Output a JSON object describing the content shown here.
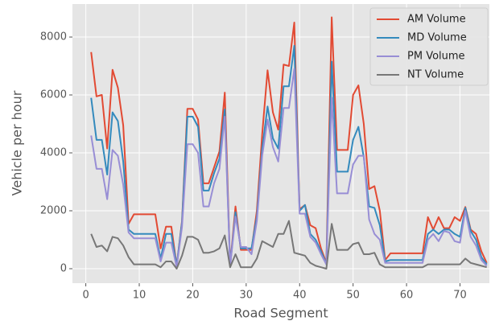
{
  "chart_data": {
    "type": "line",
    "x_label": "Road Segment",
    "y_label": "Vehicle per hour",
    "x": [
      1,
      2,
      3,
      4,
      5,
      6,
      7,
      8,
      9,
      10,
      11,
      12,
      13,
      14,
      15,
      16,
      17,
      18,
      19,
      20,
      21,
      22,
      23,
      24,
      25,
      26,
      27,
      28,
      29,
      30,
      31,
      32,
      33,
      34,
      35,
      36,
      37,
      38,
      39,
      40,
      41,
      42,
      43,
      44,
      45,
      46,
      47,
      48,
      49,
      50,
      51,
      52,
      53,
      54,
      55,
      56,
      57,
      58,
      59,
      60,
      61,
      62,
      63,
      64,
      65,
      66,
      67,
      68,
      69,
      70,
      71,
      72,
      73,
      74,
      75
    ],
    "series": [
      {
        "name": "AM Volume",
        "color": "#e24a33",
        "values": [
          7480,
          5950,
          6000,
          4150,
          6870,
          6250,
          4950,
          1550,
          1880,
          1880,
          1880,
          1880,
          1880,
          700,
          1450,
          1450,
          100,
          1650,
          5520,
          5520,
          5150,
          2950,
          2950,
          3500,
          4050,
          6080,
          100,
          2150,
          650,
          650,
          650,
          2000,
          4650,
          6850,
          5400,
          4800,
          7050,
          7000,
          8500,
          2050,
          2200,
          1500,
          1400,
          700,
          200,
          8680,
          4100,
          4100,
          4100,
          6000,
          6330,
          5000,
          2750,
          2850,
          2000,
          300,
          530,
          530,
          530,
          530,
          530,
          530,
          530,
          1780,
          1350,
          1780,
          1400,
          1400,
          1780,
          1650,
          2130,
          1350,
          1200,
          600,
          200
        ]
      },
      {
        "name": "MD Volume",
        "color": "#348abd",
        "values": [
          5900,
          4450,
          4450,
          3250,
          5400,
          5100,
          3700,
          1350,
          1200,
          1200,
          1200,
          1200,
          1200,
          350,
          1200,
          1200,
          100,
          1600,
          5250,
          5250,
          4900,
          2700,
          2700,
          3300,
          3800,
          5500,
          100,
          1950,
          700,
          700,
          700,
          1800,
          4150,
          5600,
          4500,
          4150,
          6300,
          6300,
          7700,
          2000,
          2200,
          1200,
          1000,
          600,
          150,
          7150,
          3350,
          3350,
          3350,
          4450,
          4900,
          3850,
          2150,
          2100,
          1500,
          250,
          300,
          300,
          300,
          300,
          300,
          300,
          300,
          1200,
          1350,
          1200,
          1350,
          1350,
          1200,
          1100,
          2100,
          1300,
          1000,
          400,
          150
        ]
      },
      {
        "name": "PM Volume",
        "color": "#988ed5",
        "values": [
          4600,
          3450,
          3450,
          2400,
          4100,
          3900,
          2900,
          1250,
          1050,
          1050,
          1050,
          1050,
          1050,
          250,
          900,
          900,
          50,
          1450,
          4300,
          4300,
          4000,
          2150,
          2150,
          2950,
          3450,
          5250,
          100,
          1800,
          750,
          750,
          500,
          1650,
          3900,
          5150,
          4200,
          3700,
          5550,
          5550,
          6900,
          1900,
          1900,
          1100,
          900,
          500,
          150,
          5900,
          2600,
          2600,
          2600,
          3600,
          3900,
          3900,
          1700,
          1200,
          1000,
          200,
          200,
          200,
          200,
          200,
          200,
          200,
          200,
          1000,
          1200,
          950,
          1300,
          1250,
          950,
          900,
          2000,
          1100,
          800,
          300,
          100
        ]
      },
      {
        "name": "NT Volume",
        "color": "#777777",
        "values": [
          1200,
          750,
          800,
          600,
          1100,
          1050,
          800,
          400,
          150,
          150,
          150,
          150,
          150,
          50,
          250,
          250,
          0,
          450,
          1100,
          1100,
          1000,
          550,
          550,
          600,
          700,
          1150,
          50,
          500,
          50,
          50,
          50,
          350,
          950,
          850,
          750,
          1200,
          1200,
          1650,
          550,
          500,
          450,
          200,
          100,
          50,
          0,
          1550,
          650,
          650,
          650,
          850,
          900,
          500,
          500,
          550,
          150,
          50,
          50,
          50,
          50,
          50,
          50,
          50,
          50,
          150,
          150,
          150,
          150,
          150,
          150,
          150,
          350,
          200,
          150,
          100,
          50
        ]
      }
    ],
    "xlim": [
      -2.5,
      75.5
    ],
    "ylim": [
      -500,
      9140
    ],
    "xticks": [
      0,
      10,
      20,
      30,
      40,
      50,
      60,
      70
    ],
    "yticks": [
      0,
      2000,
      4000,
      6000,
      8000
    ],
    "grid": true,
    "legend": "upper right"
  }
}
